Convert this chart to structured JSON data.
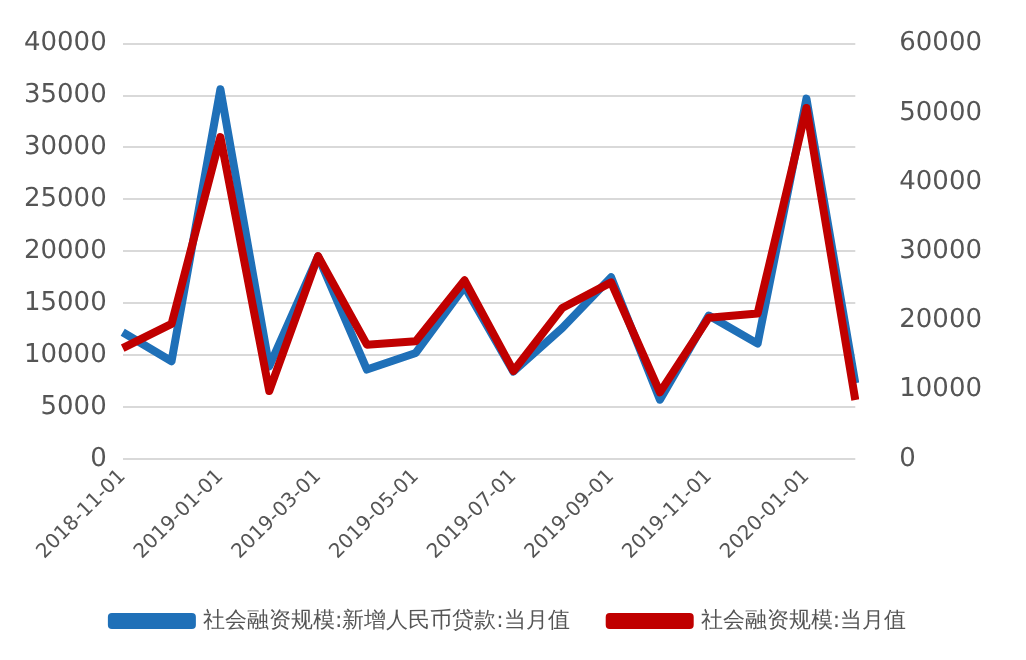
{
  "chart_data": {
    "type": "line",
    "categories": [
      "2018-11-01",
      null,
      "2019-01-01",
      null,
      "2019-03-01",
      null,
      "2019-05-01",
      null,
      "2019-07-01",
      null,
      "2019-09-01",
      null,
      "2019-11-01",
      null,
      "2020-01-01",
      null
    ],
    "series": [
      {
        "name": "社会融资规模:新增人民币贷款:当月值",
        "color": "#1f70b8",
        "values": [
          12200,
          9400,
          35600,
          8900,
          19500,
          8600,
          10200,
          16600,
          8400,
          12600,
          17500,
          5700,
          13800,
          11100,
          34700,
          7300
        ]
      },
      {
        "name": "社会融资规模:当月值",
        "color": "#c00000",
        "axis": "y2",
        "values": [
          16000,
          19500,
          46500,
          9800,
          29300,
          16500,
          17000,
          25800,
          12700,
          21800,
          25500,
          9600,
          20400,
          21000,
          50700,
          8500
        ]
      }
    ],
    "ylim": [
      0,
      40000
    ],
    "yticks": [
      0,
      5000,
      10000,
      15000,
      20000,
      25000,
      30000,
      35000,
      40000
    ],
    "y2lim": [
      0,
      60000
    ],
    "y2ticks": [
      0,
      10000,
      20000,
      30000,
      40000,
      50000,
      60000
    ],
    "grid": "y",
    "legend": "bottom",
    "marker": "none",
    "line_style": "solid"
  }
}
